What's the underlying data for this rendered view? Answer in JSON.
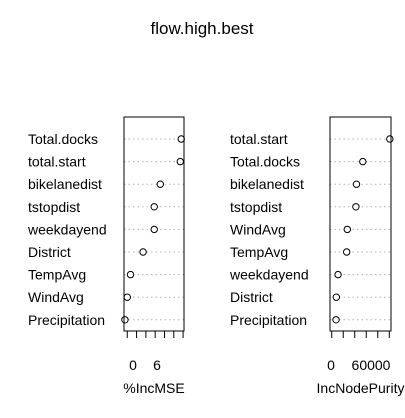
{
  "chart_data": {
    "title": "flow.high.best",
    "type": "dotchart",
    "panels": [
      {
        "xlabel": "%IncMSE",
        "tick_labels": [
          "0",
          "6"
        ],
        "ticks": [
          0,
          2,
          4,
          6,
          8,
          10,
          12
        ],
        "xlim": [
          -0.7,
          12.2
        ],
        "categories": [
          "Total.docks",
          "total.start",
          "bikelanedist",
          "tstopdist",
          "weekdayend",
          "District",
          "TempAvg",
          "WindAvg",
          "Precipitation"
        ],
        "values": [
          11.6,
          11.4,
          7.1,
          5.8,
          5.8,
          3.4,
          0.7,
          0.0,
          -0.5
        ]
      },
      {
        "xlabel": "IncNodePurity",
        "tick_labels": [
          "0",
          "60000"
        ],
        "ticks": [
          0,
          20000,
          40000,
          60000,
          80000,
          100000
        ],
        "xlim": [
          -3000,
          103000
        ],
        "categories": [
          "total.start",
          "Total.docks",
          "bikelanedist",
          "tstopdist",
          "WindAvg",
          "TempAvg",
          "weekdayend",
          "District",
          "Precipitation"
        ],
        "values": [
          101000,
          54000,
          43000,
          42000,
          27000,
          26000,
          11000,
          8000,
          7500
        ]
      }
    ]
  }
}
